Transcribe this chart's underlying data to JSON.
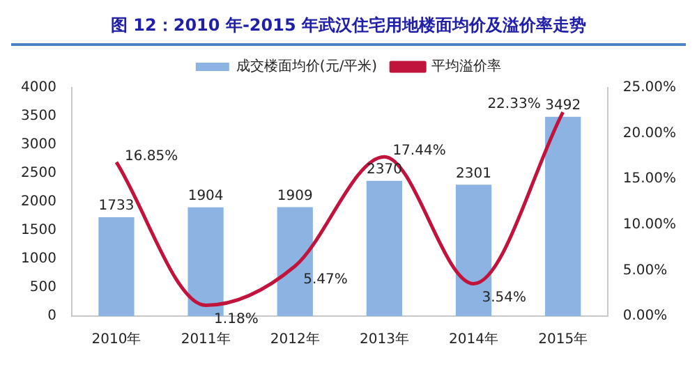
{
  "chart_data": {
    "type": "bar",
    "title": "图 12：2010 年-2015 年武汉住宅用地楼面均价及溢价率走势",
    "categories": [
      "2010年",
      "2011年",
      "2012年",
      "2013年",
      "2014年",
      "2015年"
    ],
    "series": [
      {
        "name": "成交楼面均价(元/平米)",
        "color": "#8db3e2",
        "values": [
          1733,
          1904,
          1909,
          2370,
          2301,
          3492
        ],
        "value_labels": [
          "1733",
          "1904",
          "1909",
          "2370",
          "2301",
          "3492"
        ]
      },
      {
        "name": "平均溢价率",
        "type": "line",
        "axis": "y2",
        "color": "#c0143c",
        "values": [
          16.85,
          1.18,
          5.47,
          17.44,
          3.54,
          22.33
        ],
        "value_labels": [
          "16.85%",
          "1.18%",
          "5.47%",
          "17.44%",
          "3.54%",
          "22.33%"
        ]
      }
    ],
    "ylim": [
      0,
      4000
    ],
    "yticks": [
      0,
      500,
      1000,
      1500,
      2000,
      2500,
      3000,
      3500,
      4000
    ],
    "y2lim": [
      0,
      25
    ],
    "y2ticks": [
      {
        "value": 0,
        "label": "0.00%"
      },
      {
        "value": 5,
        "label": "5.00%"
      },
      {
        "value": 10,
        "label": "10.00%"
      },
      {
        "value": 15,
        "label": "15.00%"
      },
      {
        "value": 20,
        "label": "20.00%"
      },
      {
        "value": 25,
        "label": "25.00%"
      }
    ],
    "legend": "top",
    "grid": false,
    "marker": "none"
  }
}
